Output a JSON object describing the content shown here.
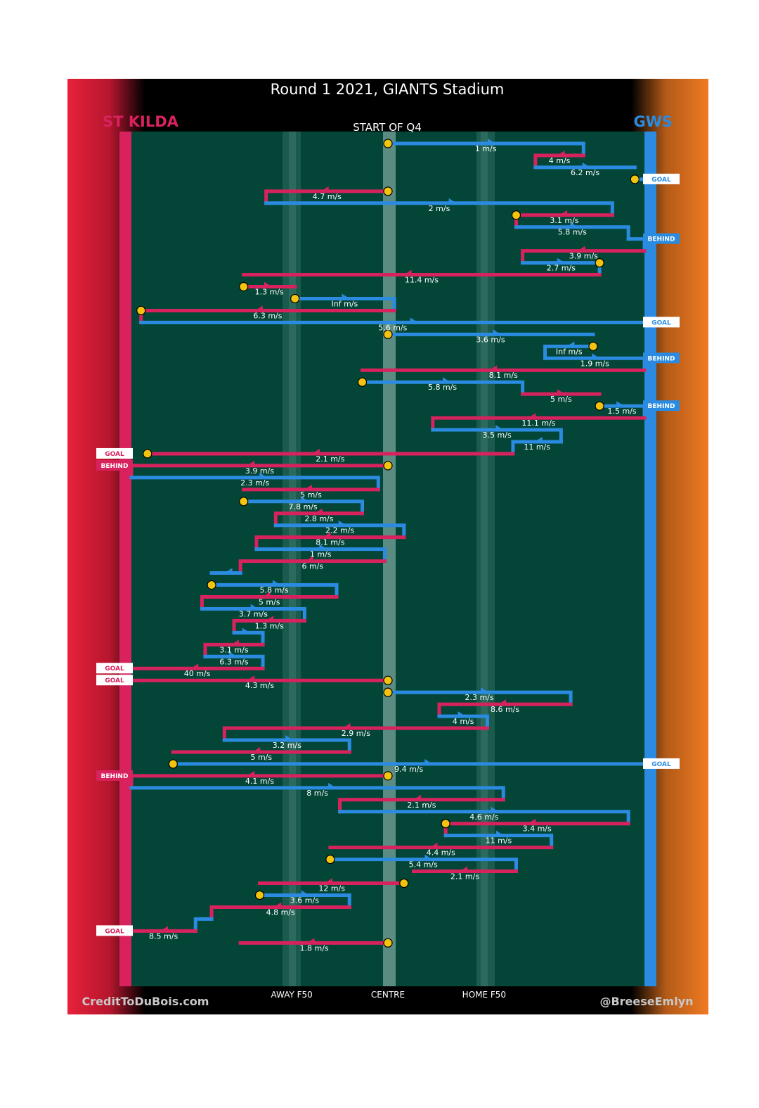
{
  "chart_data": {
    "type": "chain-timeline",
    "title": "Round 1 2021, GIANTS Stadium",
    "subtitle": "START OF Q4",
    "xlabel": "",
    "ylabel": "",
    "x_axis": {
      "range": [
        -80,
        80
      ],
      "unit": "metres from centre",
      "ticks": [
        {
          "value": -30,
          "label": "AWAY F50"
        },
        {
          "value": 0,
          "label": "CENTRE"
        },
        {
          "value": 30,
          "label": "HOME F50"
        }
      ]
    },
    "teams": {
      "away": {
        "name": "ST KILDA",
        "color": "#d8225e",
        "end": "left"
      },
      "home": {
        "name": "GWS",
        "color": "#2a8be0",
        "end": "right"
      }
    },
    "colors": {
      "away": "#d8225e",
      "home": "#2a8be0",
      "field": "#034638",
      "marker": "#f2c40f",
      "label_text": "#ffffff",
      "header_bg": "#000000",
      "left_edge": "#e8213b",
      "right_edge": "#f07a22"
    },
    "credits": {
      "left": "CreditToDuBois.com",
      "right": "@BreeseEmlyn"
    },
    "outcome_labels": {
      "goal": "GOAL",
      "behind": "BEHIND"
    },
    "speed_unit": "m/s",
    "start_marker_description": "yellow circle = possession start",
    "segments": [
      {
        "team": "home",
        "x_from": 0,
        "x_to": 61,
        "speed": "1",
        "start": true
      },
      {
        "team": "away",
        "x_from": 61,
        "x_to": 46,
        "speed": "4"
      },
      {
        "team": "home",
        "x_from": 46,
        "x_to": 77,
        "speed": "6.2"
      },
      {
        "team": "home",
        "x_from": 77,
        "x_to": 80,
        "speed": "",
        "start": true,
        "outcome": "GOAL"
      },
      {
        "team": "away",
        "x_from": 0,
        "x_to": -38,
        "speed": "4.7",
        "start": true
      },
      {
        "team": "home",
        "x_from": -38,
        "x_to": 70,
        "speed": "2"
      },
      {
        "team": "away",
        "x_from": 70,
        "x_to": 40,
        "speed": "3.1",
        "start_end": true
      },
      {
        "team": "home",
        "x_from": 40,
        "x_to": 75,
        "speed": "5.8"
      },
      {
        "team": "home",
        "x_from": 75,
        "x_to": 80,
        "speed": "",
        "outcome": "BEHIND"
      },
      {
        "team": "away",
        "x_from": 80,
        "x_to": 42,
        "speed": "3.9"
      },
      {
        "team": "home",
        "x_from": 42,
        "x_to": 66,
        "speed": "2.7",
        "start_end": true
      },
      {
        "team": "away",
        "x_from": 66,
        "x_to": -45,
        "speed": "11.4"
      },
      {
        "team": "away",
        "x_from": -45,
        "x_to": -29,
        "speed": "1.3",
        "start": true
      },
      {
        "team": "home",
        "x_from": -29,
        "x_to": 2,
        "speed": "Inf",
        "start": true
      },
      {
        "team": "away",
        "x_from": 2,
        "x_to": -77,
        "speed": "6.3",
        "start_end": true
      },
      {
        "team": "home",
        "x_from": -77,
        "x_to": 80,
        "speed": "5.6",
        "outcome": "GOAL"
      },
      {
        "team": "home",
        "x_from": 0,
        "x_to": 64,
        "speed": "3.6",
        "start": true
      },
      {
        "team": "home",
        "x_from": 64,
        "x_to": 49,
        "speed": "Inf",
        "start": true
      },
      {
        "team": "home",
        "x_from": 49,
        "x_to": 80,
        "speed": "1.9",
        "outcome": "BEHIND"
      },
      {
        "team": "away",
        "x_from": 80,
        "x_to": -8,
        "speed": "8.1"
      },
      {
        "team": "home",
        "x_from": -8,
        "x_to": 42,
        "speed": "5.8",
        "start": true
      },
      {
        "team": "away",
        "x_from": 42,
        "x_to": 66,
        "speed": "5"
      },
      {
        "team": "home",
        "x_from": 66,
        "x_to": 80,
        "speed": "1.5",
        "start": true,
        "outcome": "BEHIND"
      },
      {
        "team": "away",
        "x_from": 80,
        "x_to": 14,
        "speed": "11.1"
      },
      {
        "team": "home",
        "x_from": 14,
        "x_to": 54,
        "speed": "3.5"
      },
      {
        "team": "home",
        "x_from": 54,
        "x_to": 39,
        "speed": "11"
      },
      {
        "team": "away",
        "x_from": 39,
        "x_to": -75,
        "speed": "2.1",
        "start_end": true,
        "outcome": "GOAL"
      },
      {
        "team": "away",
        "x_from": 0,
        "x_to": -80,
        "speed": "3.9",
        "start": true,
        "outcome": "BEHIND"
      },
      {
        "team": "home",
        "x_from": -80,
        "x_to": -3,
        "speed": "2.3"
      },
      {
        "team": "away",
        "x_from": -3,
        "x_to": -45,
        "speed": "5"
      },
      {
        "team": "home",
        "x_from": -45,
        "x_to": -8,
        "speed": "7.8",
        "start": true
      },
      {
        "team": "away",
        "x_from": -8,
        "x_to": -35,
        "speed": "2.8"
      },
      {
        "team": "home",
        "x_from": -35,
        "x_to": 5,
        "speed": "2.2"
      },
      {
        "team": "away",
        "x_from": 5,
        "x_to": -41,
        "speed": "8.1"
      },
      {
        "team": "home",
        "x_from": -41,
        "x_to": -1,
        "speed": "1"
      },
      {
        "team": "away",
        "x_from": -1,
        "x_to": -46,
        "speed": "6"
      },
      {
        "team": "home",
        "x_from": -46,
        "x_to": -55,
        "speed": ""
      },
      {
        "team": "home",
        "x_from": -55,
        "x_to": -16,
        "speed": "5.8",
        "start": true
      },
      {
        "team": "away",
        "x_from": -16,
        "x_to": -58,
        "speed": "5"
      },
      {
        "team": "home",
        "x_from": -58,
        "x_to": -26,
        "speed": "3.7"
      },
      {
        "team": "away",
        "x_from": -26,
        "x_to": -48,
        "speed": "1.3"
      },
      {
        "team": "home",
        "x_from": -48,
        "x_to": -39,
        "speed": ""
      },
      {
        "team": "away",
        "x_from": -39,
        "x_to": -57,
        "speed": "3.1"
      },
      {
        "team": "home",
        "x_from": -57,
        "x_to": -39,
        "speed": "6.3"
      },
      {
        "team": "away",
        "x_from": -39,
        "x_to": -80,
        "speed": "40",
        "outcome": "GOAL"
      },
      {
        "team": "away",
        "x_from": 0,
        "x_to": -80,
        "speed": "4.3",
        "start": true,
        "outcome": "GOAL"
      },
      {
        "team": "home",
        "x_from": 0,
        "x_to": 57,
        "speed": "2.3",
        "start": true
      },
      {
        "team": "away",
        "x_from": 57,
        "x_to": 16,
        "speed": "8.6"
      },
      {
        "team": "home",
        "x_from": 16,
        "x_to": 31,
        "speed": "4"
      },
      {
        "team": "away",
        "x_from": 31,
        "x_to": -51,
        "speed": "2.9"
      },
      {
        "team": "home",
        "x_from": -51,
        "x_to": -12,
        "speed": "3.2"
      },
      {
        "team": "away",
        "x_from": -12,
        "x_to": -67,
        "speed": "5"
      },
      {
        "team": "home",
        "x_from": -67,
        "x_to": 80,
        "speed": "9.4",
        "start": true,
        "outcome": "GOAL"
      },
      {
        "team": "away",
        "x_from": 0,
        "x_to": -80,
        "speed": "4.1",
        "start": true,
        "outcome": "BEHIND"
      },
      {
        "team": "home",
        "x_from": -80,
        "x_to": 36,
        "speed": "8"
      },
      {
        "team": "away",
        "x_from": 36,
        "x_to": -15,
        "speed": "2.1"
      },
      {
        "team": "home",
        "x_from": -15,
        "x_to": 75,
        "speed": "4.6"
      },
      {
        "team": "away",
        "x_from": 75,
        "x_to": 18,
        "speed": "3.4",
        "start_end": true
      },
      {
        "team": "home",
        "x_from": 18,
        "x_to": 51,
        "speed": "11"
      },
      {
        "team": "away",
        "x_from": 51,
        "x_to": -18,
        "speed": "4.4"
      },
      {
        "team": "home",
        "x_from": -18,
        "x_to": 40,
        "speed": "5.4",
        "start": true
      },
      {
        "team": "away",
        "x_from": 40,
        "x_to": 8,
        "speed": "2.1"
      },
      {
        "team": "away",
        "x_from": 5,
        "x_to": -40,
        "speed": "12",
        "start": true
      },
      {
        "team": "home",
        "x_from": -40,
        "x_to": -12,
        "speed": "3.6",
        "start": true
      },
      {
        "team": "away",
        "x_from": -12,
        "x_to": -55,
        "speed": "4.8"
      },
      {
        "team": "home",
        "x_from": -55,
        "x_to": -60,
        "speed": ""
      },
      {
        "team": "away",
        "x_from": -60,
        "x_to": -80,
        "speed": "8.5",
        "outcome": "GOAL"
      },
      {
        "team": "away",
        "x_from": 0,
        "x_to": -46,
        "speed": "1.8",
        "start": true
      }
    ]
  }
}
